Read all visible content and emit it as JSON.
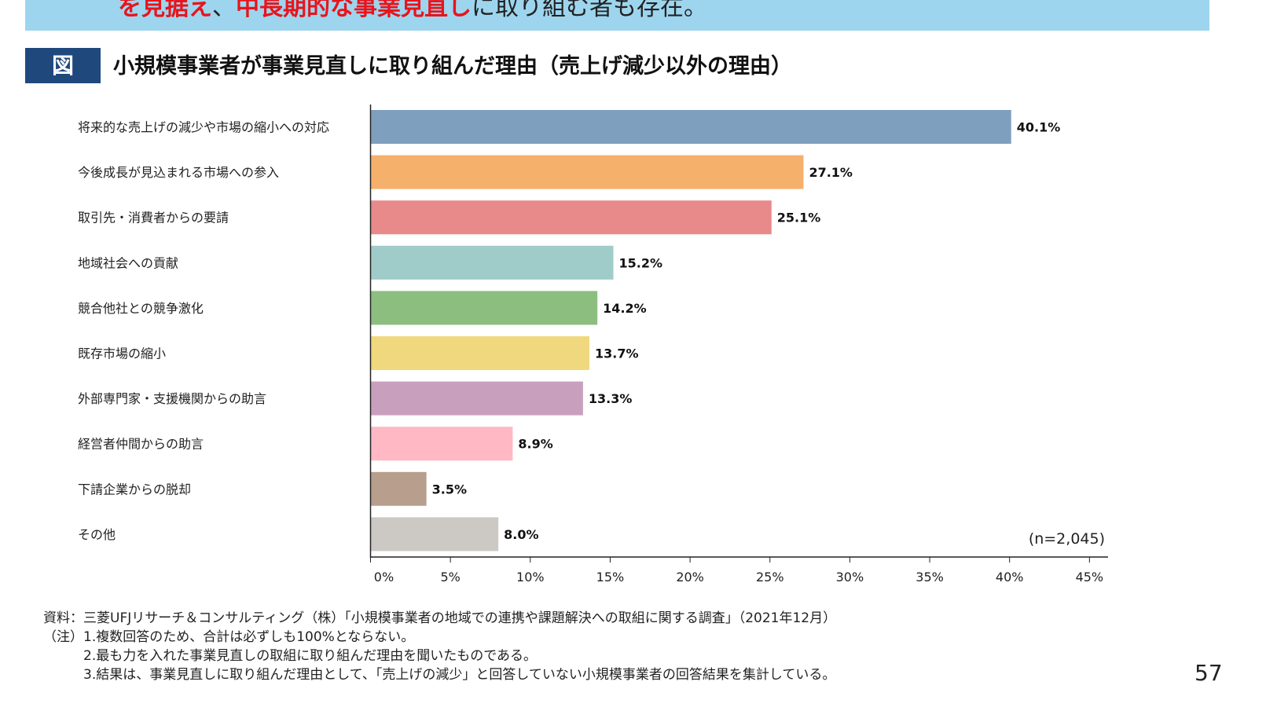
{
  "banner": {
    "red1": "を見据え",
    "mid": "、",
    "red2": "中長期的な事業見直し",
    "rest": "に取り組む者も存在。"
  },
  "figure_tag": "図",
  "chart_data": {
    "type": "bar",
    "orientation": "horizontal",
    "title": "小規模事業者が事業見直しに取り組んだ理由（売上げ減少以外の理由）",
    "categories": [
      "将来的な売上げの減少や市場の縮小への対応",
      "今後成長が見込まれる市場への参入",
      "取引先・消費者からの要請",
      "地域社会への貢献",
      "競合他社との競争激化",
      "既存市場の縮小",
      "外部専門家・支援機関からの助言",
      "経営者仲間からの助言",
      "下請企業からの脱却",
      "その他"
    ],
    "values": [
      40.1,
      27.1,
      25.1,
      15.2,
      14.2,
      13.7,
      13.3,
      8.9,
      3.5,
      8.0
    ],
    "data_labels": [
      "40.1%",
      "27.1%",
      "25.1%",
      "15.2%",
      "14.2%",
      "13.7%",
      "13.3%",
      "8.9%",
      "3.5%",
      "8.0%"
    ],
    "colors": [
      "#7f9fbf",
      "#f5b06c",
      "#e88a8a",
      "#9fcbc8",
      "#8cbe80",
      "#f0d87e",
      "#c8a0be",
      "#ffb8c4",
      "#b89e8c",
      "#ccc8c4"
    ],
    "xticks": [
      "0%",
      "5%",
      "10%",
      "15%",
      "20%",
      "25%",
      "30%",
      "35%",
      "40%",
      "45%"
    ],
    "xlim": [
      0,
      46
    ],
    "annotation": "(n=2,045)",
    "grid": false
  },
  "notes": {
    "source": "資料：三菱UFJリサーチ＆コンサルティング（株）「小規模事業者の地域での連携や課題解決への取組に関する調査」（2021年12月）",
    "note1": "（注）1.複数回答のため、合計は必ずしも100%とならない。",
    "note2": "　　　2.最も力を入れた事業見直しの取組に取り組んだ理由を聞いたものである。",
    "note3": "　　　3.結果は、事業見直しに取り組んだ理由として、「売上げの減少」と回答していない小規模事業者の回答結果を集計している。"
  },
  "page_number": "57"
}
